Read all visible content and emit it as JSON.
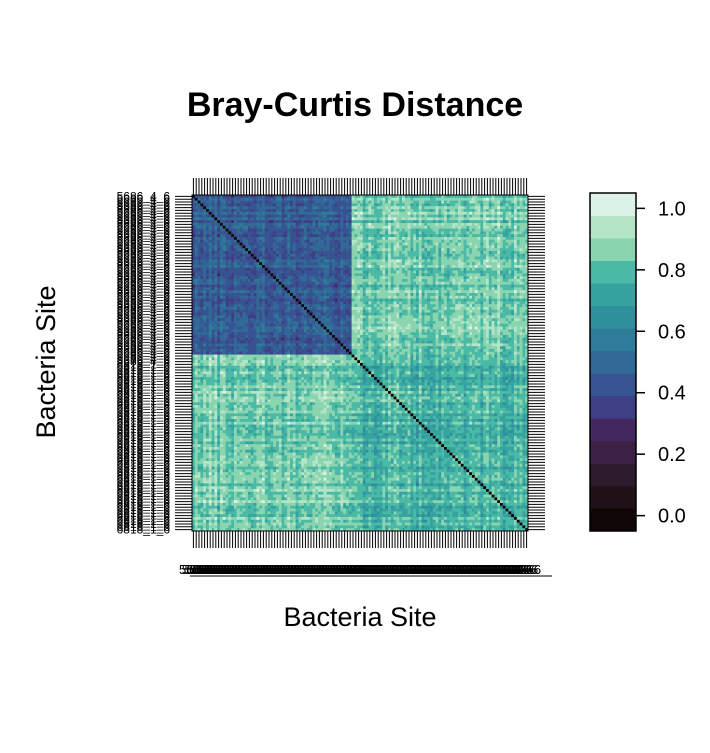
{
  "chart_data": {
    "type": "heatmap",
    "title": "Bray-Curtis Distance",
    "xlabel": "Bacteria Site",
    "ylabel": "Bacteria Site",
    "colorbar": {
      "ticks": [
        0.0,
        0.2,
        0.4,
        0.6,
        0.8,
        1.0
      ],
      "tick_labels": [
        "0.0",
        "0.2",
        "0.4",
        "0.6",
        "0.8",
        "1.0"
      ],
      "range": [
        -0.05,
        1.05
      ],
      "bins": 15,
      "colors": [
        "#0f0606",
        "#1f1116",
        "#2d1a2c",
        "#3b2245",
        "#43285f",
        "#3e3f85",
        "#385391",
        "#316997",
        "#2f7b9a",
        "#2f8f9d",
        "#36a3a0",
        "#4abaa6",
        "#8bd4b0",
        "#b5e4c7",
        "#ddf2e6"
      ]
    },
    "matrix": {
      "n_sites": 120,
      "group_a_size": 57,
      "within_group_a": 0.46,
      "within_group_b": 0.78,
      "between_groups": 0.85,
      "diagonal": 0.0
    },
    "axis_tick_labels": {
      "y_top": "5686_4_6",
      "y_bottom": "6818_1_6",
      "x_left": "5686",
      "x_right": "6816"
    }
  }
}
